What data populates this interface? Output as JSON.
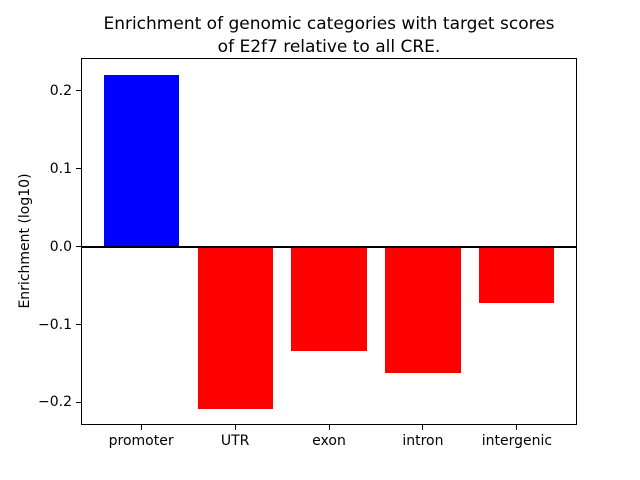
{
  "figure": {
    "background": "#ffffff",
    "text_color": "#000000"
  },
  "chart_data": {
    "type": "bar",
    "title": "Enrichment of genomic categories with target scores of E2f7 relative to all CRE.",
    "title_lines": [
      "Enrichment of genomic categories with target scores",
      "of E2f7 relative to all CRE."
    ],
    "xlabel": "",
    "ylabel": "Enrichment (log10)",
    "categories": [
      "promoter",
      "UTR",
      "exon",
      "intron",
      "intergenic"
    ],
    "values": [
      0.22,
      -0.208,
      -0.134,
      -0.162,
      -0.073
    ],
    "bar_colors": [
      "#0000ff",
      "#ff0000",
      "#ff0000",
      "#ff0000",
      "#ff0000"
    ],
    "bar_width": 0.8,
    "xlim": [
      -0.64,
      4.64
    ],
    "ylim": [
      -0.229,
      0.242
    ],
    "yticks": [
      {
        "value": 0.2,
        "label": "0.2"
      },
      {
        "value": 0.1,
        "label": "0.1"
      },
      {
        "value": 0.0,
        "label": "0.0"
      },
      {
        "value": -0.1,
        "label": "−0.1"
      },
      {
        "value": -0.2,
        "label": "−0.2"
      }
    ],
    "zero_line": true,
    "grid": false,
    "legend": null
  }
}
